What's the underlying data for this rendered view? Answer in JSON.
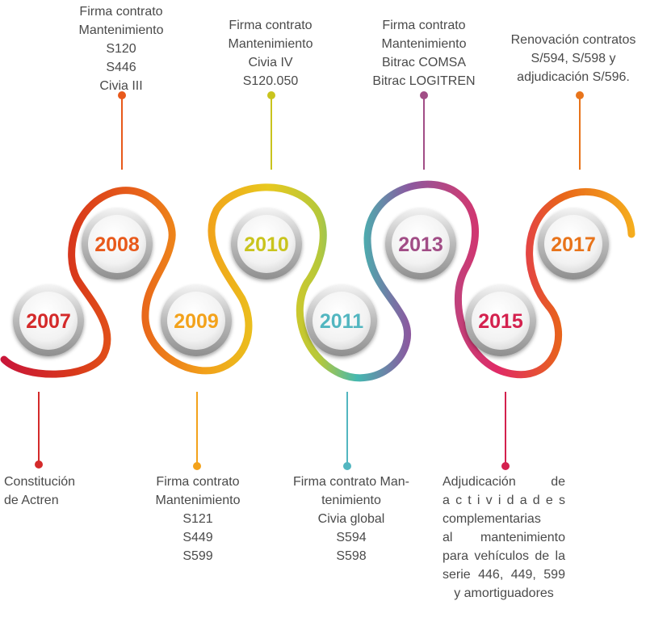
{
  "milestones": [
    {
      "year": "2007",
      "color": "#d42a2a",
      "lines": [
        "Constitución",
        "de Actren"
      ]
    },
    {
      "year": "2008",
      "color": "#e8591b",
      "lines": [
        "Firma contrato",
        "Mantenimiento",
        "S120",
        "S446",
        "Civia III"
      ]
    },
    {
      "year": "2009",
      "color": "#f3a21b",
      "lines": [
        "Firma contrato",
        "Mantenimiento",
        "S121",
        "S449",
        "S599"
      ]
    },
    {
      "year": "2010",
      "color": "#c9c41e",
      "lines": [
        "Firma contrato",
        "Mantenimiento",
        "Civia IV",
        "S120.050"
      ]
    },
    {
      "year": "2011",
      "color": "#52b6c0",
      "lines": [
        "Firma contrato Man-",
        "tenimiento",
        "Civia global",
        "S594",
        "S598"
      ]
    },
    {
      "year": "2013",
      "color": "#a14d86",
      "lines": [
        "Firma contrato",
        "Mantenimiento",
        "Bitrac COMSA",
        "Bitrac LOGITREN"
      ]
    },
    {
      "year": "2015",
      "color": "#d4214e",
      "lines": [
        "Adjudicación de",
        "actividades",
        "complementarias",
        "al mantenimiento",
        "para vehículos de la",
        "serie 446, 449, 599",
        "y amortiguadores"
      ]
    },
    {
      "year": "2017",
      "color": "#e8741b",
      "lines": [
        "Renovación contratos",
        "S/594, S/598 y",
        "adjudicación S/596."
      ]
    }
  ]
}
